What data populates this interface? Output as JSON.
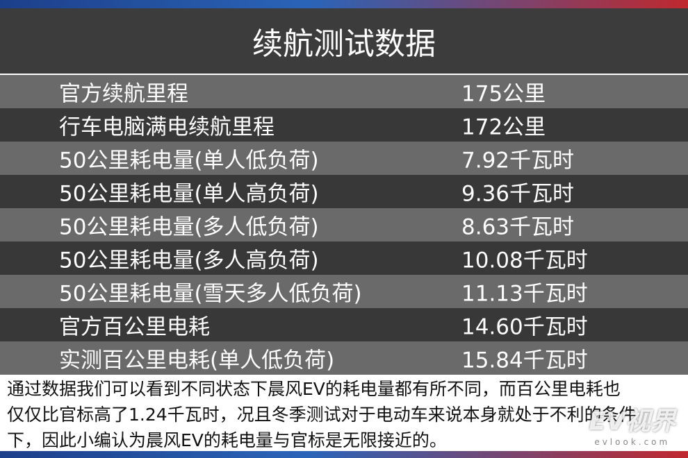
{
  "title": "续航测试数据",
  "rows": [
    [
      "官方续航里程",
      "175公里"
    ],
    [
      "行车电脑满电续航里程",
      "172公里"
    ],
    [
      "50公里耗电量(单人低负荷)",
      "7.92千瓦时"
    ],
    [
      "50公里耗电量(单人高负荷)",
      "9.36千瓦时"
    ],
    [
      "50公里耗电量(多人低负荷)",
      "8.63千瓦时"
    ],
    [
      "50公里耗电量(多人高负荷)",
      "10.08千瓦时"
    ],
    [
      "50公里耗电量(雪天多人低负荷)",
      "11.13千瓦时"
    ],
    [
      "官方百公里电耗",
      "14.60千瓦时"
    ],
    [
      "实测百公里电耗(单人低负荷)",
      "15.84千瓦时"
    ]
  ],
  "note": [
    "通过数据我们可以看到不同状态下晨风EV的耗电量都有所不同，而百公里电耗也",
    "仅仅比官标高了1.24千瓦时，况且冬季测试对于电动车来说本身就处于不利的条件",
    "下，因此小编认为晨风EV的耗电量与官标是无限接近的。"
  ],
  "watermark": {
    "logo": "EV视界",
    "site": "evlook.com"
  }
}
